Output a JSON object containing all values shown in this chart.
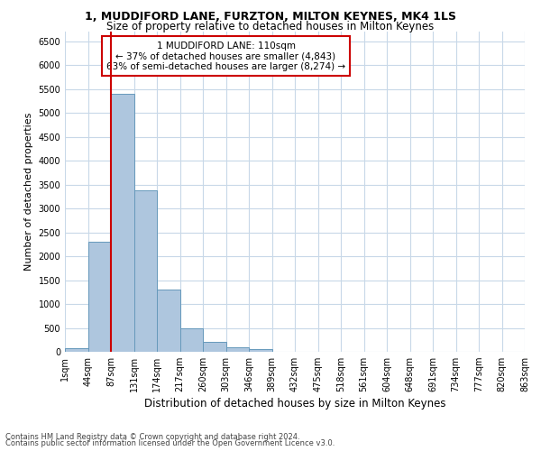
{
  "title": "1, MUDDIFORD LANE, FURZTON, MILTON KEYNES, MK4 1LS",
  "subtitle": "Size of property relative to detached houses in Milton Keynes",
  "xlabel": "Distribution of detached houses by size in Milton Keynes",
  "ylabel": "Number of detached properties",
  "bar_values": [
    75,
    2300,
    5400,
    3380,
    1310,
    490,
    200,
    85,
    60,
    0,
    0,
    0,
    0,
    0,
    0,
    0,
    0,
    0,
    0,
    0
  ],
  "categories": [
    "1sqm",
    "44sqm",
    "87sqm",
    "131sqm",
    "174sqm",
    "217sqm",
    "260sqm",
    "303sqm",
    "346sqm",
    "389sqm",
    "432sqm",
    "475sqm",
    "518sqm",
    "561sqm",
    "604sqm",
    "648sqm",
    "691sqm",
    "734sqm",
    "777sqm",
    "820sqm",
    "863sqm"
  ],
  "bar_color": "#aec6de",
  "bar_edge_color": "#6699bb",
  "vline_x": 2.0,
  "vline_color": "#cc0000",
  "annotation_text": "1 MUDDIFORD LANE: 110sqm\n← 37% of detached houses are smaller (4,843)\n63% of semi-detached houses are larger (8,274) →",
  "annotation_box_color": "#ffffff",
  "annotation_box_edge": "#cc0000",
  "ylim": [
    0,
    6700
  ],
  "yticks": [
    0,
    500,
    1000,
    1500,
    2000,
    2500,
    3000,
    3500,
    4000,
    4500,
    5000,
    5500,
    6000,
    6500
  ],
  "footer1": "Contains HM Land Registry data © Crown copyright and database right 2024.",
  "footer2": "Contains public sector information licensed under the Open Government Licence v3.0.",
  "bg_color": "#ffffff",
  "grid_color": "#c8d8e8",
  "title_fontsize": 9,
  "subtitle_fontsize": 8.5,
  "ylabel_fontsize": 8,
  "xlabel_fontsize": 8.5,
  "tick_fontsize": 7,
  "annotation_fontsize": 7.5,
  "footer_fontsize": 6
}
